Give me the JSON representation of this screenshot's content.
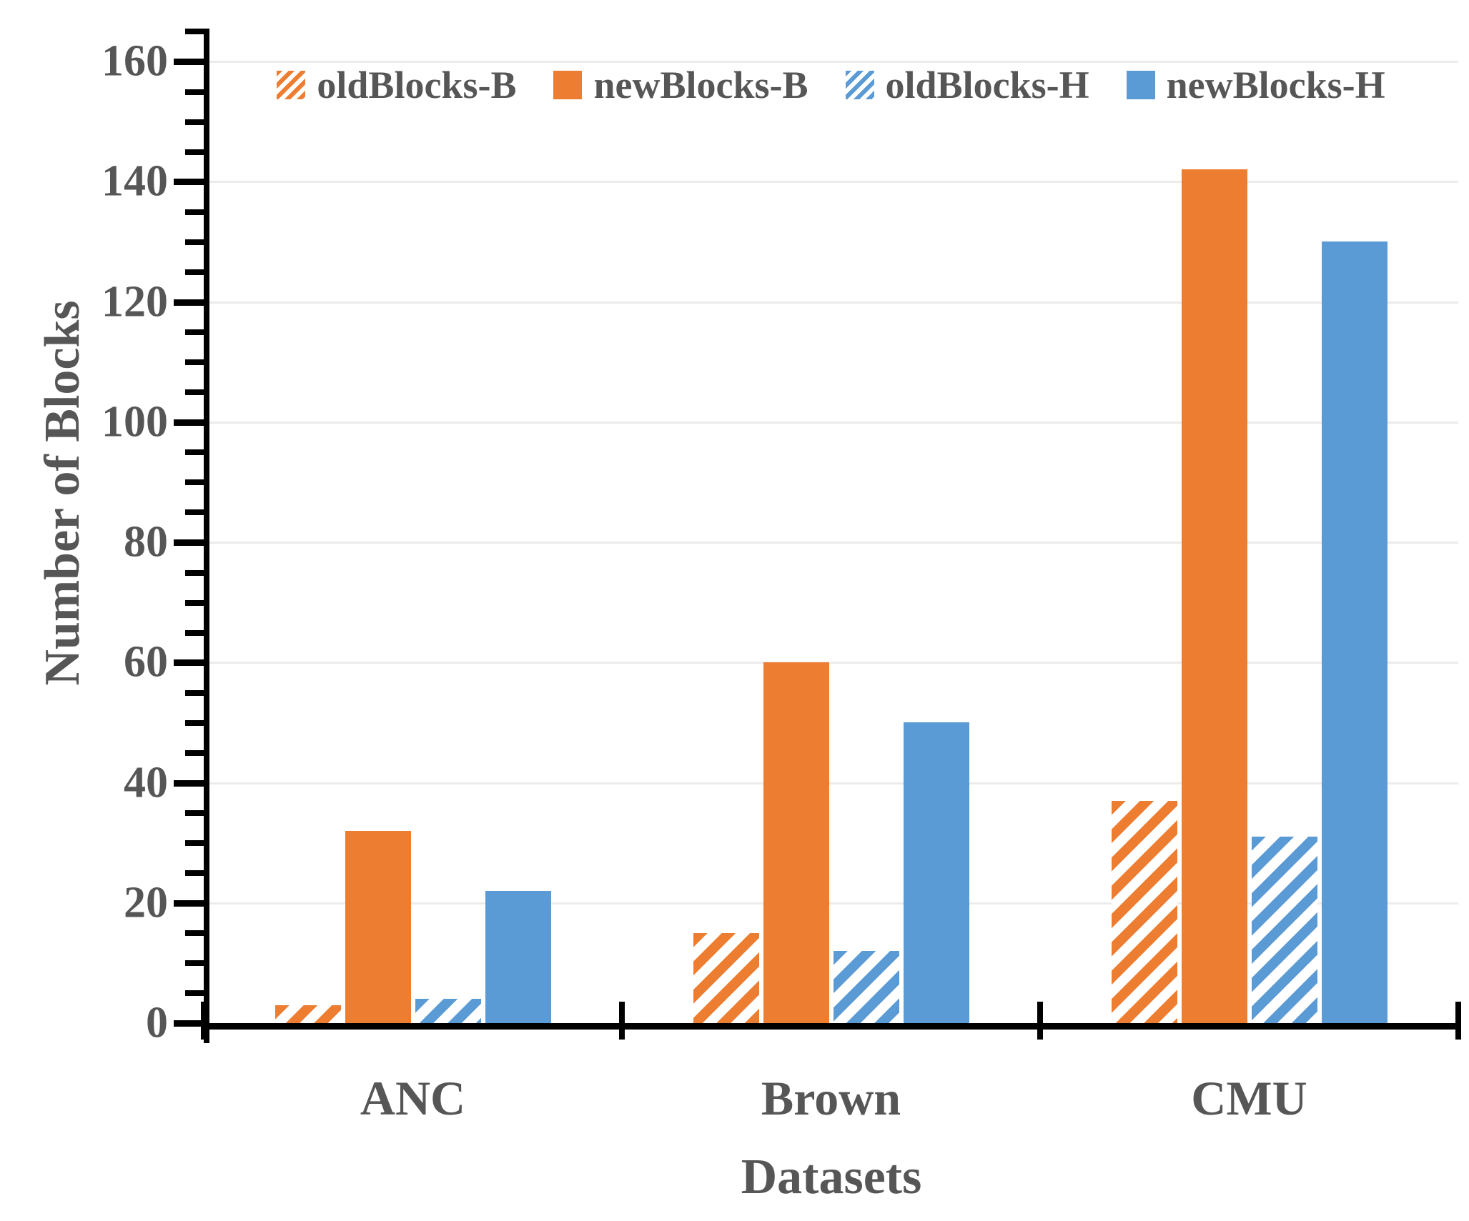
{
  "chart_data": {
    "type": "bar",
    "title": "",
    "categories": [
      "ANC",
      "Brown",
      "CMU"
    ],
    "series": [
      {
        "name": "oldBlocks-B",
        "style": "hatched",
        "color": "#ED7D31",
        "values": [
          3,
          15,
          37
        ]
      },
      {
        "name": "newBlocks-B",
        "style": "solid",
        "color": "#ED7D31",
        "values": [
          32,
          60,
          142
        ]
      },
      {
        "name": "oldBlocks-H",
        "style": "hatched",
        "color": "#5B9BD5",
        "values": [
          4,
          12,
          31
        ]
      },
      {
        "name": "newBlocks-H",
        "style": "solid",
        "color": "#5B9BD5",
        "values": [
          22,
          50,
          130
        ]
      }
    ],
    "xlabel": "Datasets",
    "ylabel": "Number of Blocks",
    "ylim": [
      0,
      160
    ],
    "ytick_step": 20,
    "ytick_labels": [
      "0",
      "20",
      "40",
      "60",
      "80",
      "100",
      "120",
      "140",
      "160"
    ],
    "minor_tick_step": 5,
    "grid": "horizontal-major",
    "legend_position": "top-center"
  },
  "colors": {
    "axis": "#000000",
    "gridline": "#ececec",
    "text": "#565656",
    "background": "#ffffff",
    "orange": "#ED7D31",
    "blue": "#5B9BD5"
  }
}
